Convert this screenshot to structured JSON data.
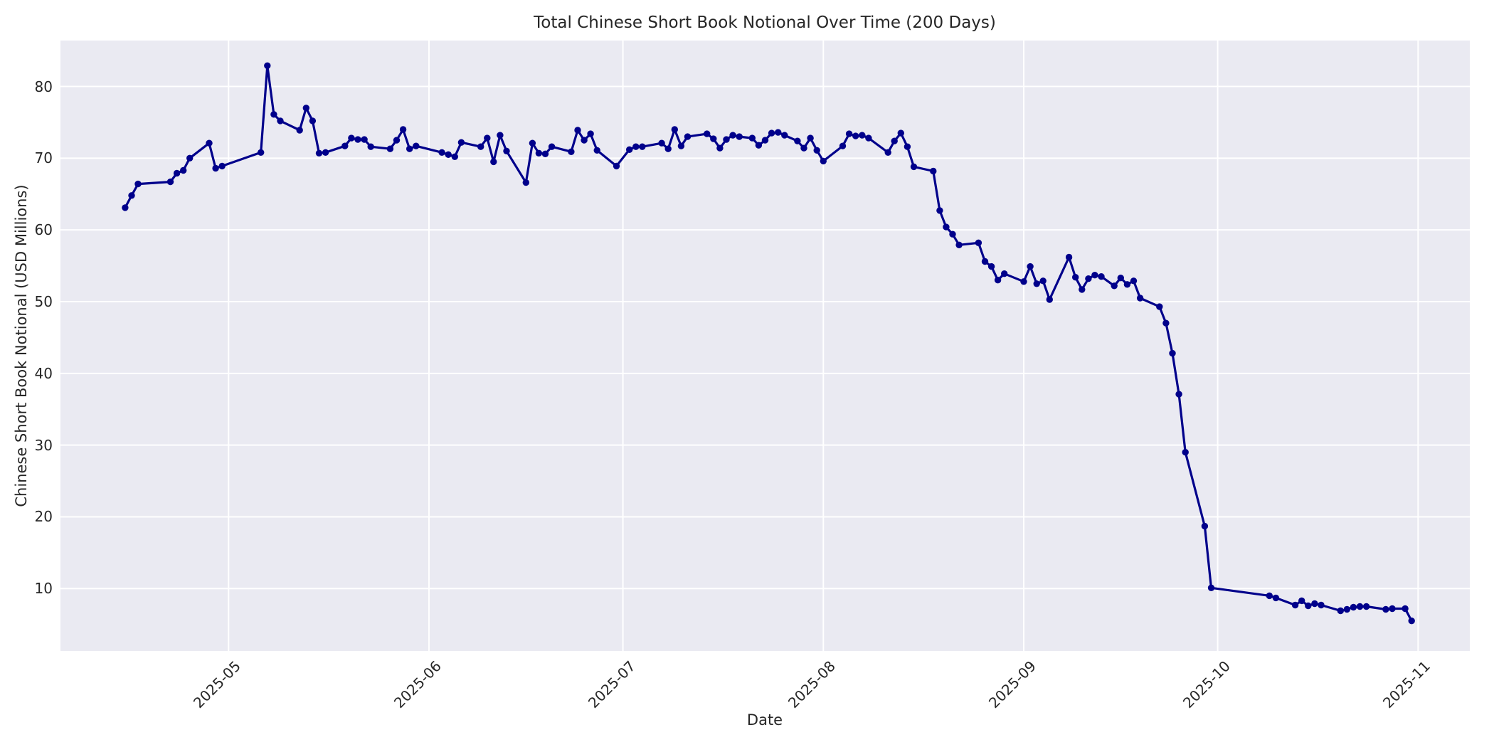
{
  "figure": {
    "background_color": "#ffffff",
    "text_color": "#262626"
  },
  "chart_data": {
    "type": "line",
    "title": "Total Chinese Short Book Notional Over Time (200 Days)",
    "xlabel": "Date",
    "ylabel": "Chinese Short Book Notional (USD Millions)",
    "grid": true,
    "legend": "none",
    "plot_background_color": "#eaeaf2",
    "grid_color": "#ffffff",
    "line_color": "#00008B",
    "marker": "circle",
    "x_domain": [
      "2025-04-05",
      "2025-11-09"
    ],
    "y_domain": [
      1.3,
      86.4
    ],
    "y_ticks": [
      10,
      20,
      30,
      40,
      50,
      60,
      70,
      80
    ],
    "x_ticks": [
      {
        "date": "2025-05-01",
        "label": "2025-05"
      },
      {
        "date": "2025-06-01",
        "label": "2025-06"
      },
      {
        "date": "2025-07-01",
        "label": "2025-07"
      },
      {
        "date": "2025-08-01",
        "label": "2025-08"
      },
      {
        "date": "2025-09-01",
        "label": "2025-09"
      },
      {
        "date": "2025-10-01",
        "label": "2025-10"
      },
      {
        "date": "2025-11-01",
        "label": "2025-11"
      }
    ],
    "series": [
      {
        "name": "Total Chinese Short Book Notional (USD Millions)",
        "color": "#00008B",
        "dates": [
          "2025-04-15",
          "2025-04-16",
          "2025-04-17",
          "2025-04-22",
          "2025-04-23",
          "2025-04-24",
          "2025-04-25",
          "2025-04-28",
          "2025-04-29",
          "2025-04-30",
          "2025-05-06",
          "2025-05-07",
          "2025-05-08",
          "2025-05-09",
          "2025-05-12",
          "2025-05-13",
          "2025-05-14",
          "2025-05-15",
          "2025-05-16",
          "2025-05-19",
          "2025-05-20",
          "2025-05-21",
          "2025-05-22",
          "2025-05-23",
          "2025-05-26",
          "2025-05-27",
          "2025-05-28",
          "2025-05-29",
          "2025-05-30",
          "2025-06-03",
          "2025-06-04",
          "2025-06-05",
          "2025-06-06",
          "2025-06-09",
          "2025-06-10",
          "2025-06-11",
          "2025-06-12",
          "2025-06-13",
          "2025-06-16",
          "2025-06-17",
          "2025-06-18",
          "2025-06-19",
          "2025-06-20",
          "2025-06-23",
          "2025-06-24",
          "2025-06-25",
          "2025-06-26",
          "2025-06-27",
          "2025-06-30",
          "2025-07-02",
          "2025-07-03",
          "2025-07-04",
          "2025-07-07",
          "2025-07-08",
          "2025-07-09",
          "2025-07-10",
          "2025-07-11",
          "2025-07-14",
          "2025-07-15",
          "2025-07-16",
          "2025-07-17",
          "2025-07-18",
          "2025-07-19",
          "2025-07-21",
          "2025-07-22",
          "2025-07-23",
          "2025-07-24",
          "2025-07-25",
          "2025-07-26",
          "2025-07-28",
          "2025-07-29",
          "2025-07-30",
          "2025-07-31",
          "2025-08-01",
          "2025-08-04",
          "2025-08-05",
          "2025-08-06",
          "2025-08-07",
          "2025-08-08",
          "2025-08-11",
          "2025-08-12",
          "2025-08-13",
          "2025-08-14",
          "2025-08-15",
          "2025-08-18",
          "2025-08-19",
          "2025-08-20",
          "2025-08-21",
          "2025-08-22",
          "2025-08-25",
          "2025-08-26",
          "2025-08-27",
          "2025-08-28",
          "2025-08-29",
          "2025-09-01",
          "2025-09-02",
          "2025-09-03",
          "2025-09-04",
          "2025-09-05",
          "2025-09-08",
          "2025-09-09",
          "2025-09-10",
          "2025-09-11",
          "2025-09-12",
          "2025-09-13",
          "2025-09-15",
          "2025-09-16",
          "2025-09-17",
          "2025-09-18",
          "2025-09-19",
          "2025-09-22",
          "2025-09-23",
          "2025-09-24",
          "2025-09-25",
          "2025-09-26",
          "2025-09-29",
          "2025-09-30",
          "2025-10-09",
          "2025-10-10",
          "2025-10-13",
          "2025-10-14",
          "2025-10-15",
          "2025-10-16",
          "2025-10-17",
          "2025-10-20",
          "2025-10-21",
          "2025-10-22",
          "2025-10-23",
          "2025-10-24",
          "2025-10-27",
          "2025-10-28",
          "2025-10-30",
          "2025-10-31"
        ],
        "values": [
          63.1,
          64.8,
          66.4,
          66.7,
          67.9,
          68.3,
          70.0,
          72.1,
          68.6,
          68.9,
          70.8,
          82.9,
          76.1,
          75.2,
          73.9,
          77.0,
          75.2,
          70.7,
          70.8,
          71.7,
          72.8,
          72.6,
          72.6,
          71.6,
          71.3,
          72.5,
          74.0,
          71.3,
          71.7,
          70.8,
          70.5,
          70.2,
          72.2,
          71.6,
          72.8,
          69.5,
          73.2,
          71.0,
          66.6,
          72.1,
          70.7,
          70.6,
          71.6,
          70.9,
          73.9,
          72.5,
          73.4,
          71.1,
          68.9,
          71.2,
          71.6,
          71.6,
          72.1,
          71.3,
          74.0,
          71.7,
          73.0,
          73.4,
          72.7,
          71.4,
          72.6,
          73.2,
          73.0,
          72.8,
          71.8,
          72.5,
          73.5,
          73.6,
          73.2,
          72.4,
          71.4,
          72.8,
          71.1,
          69.6,
          71.7,
          73.4,
          73.1,
          73.2,
          72.8,
          70.8,
          72.4,
          73.5,
          71.6,
          68.8,
          68.2,
          62.7,
          60.4,
          59.4,
          57.9,
          58.2,
          55.6,
          54.9,
          53.0,
          53.9,
          52.8,
          54.9,
          52.5,
          52.9,
          50.3,
          56.2,
          53.4,
          51.7,
          53.2,
          53.7,
          53.5,
          52.2,
          53.3,
          52.4,
          52.9,
          50.5,
          49.3,
          47.0,
          42.8,
          37.1,
          29.0,
          18.7,
          10.1,
          9.0,
          8.7,
          7.7,
          8.3,
          7.6,
          7.9,
          7.7,
          6.9,
          7.1,
          7.4,
          7.5,
          7.5,
          7.1,
          7.2,
          7.2,
          5.5
        ]
      }
    ]
  }
}
